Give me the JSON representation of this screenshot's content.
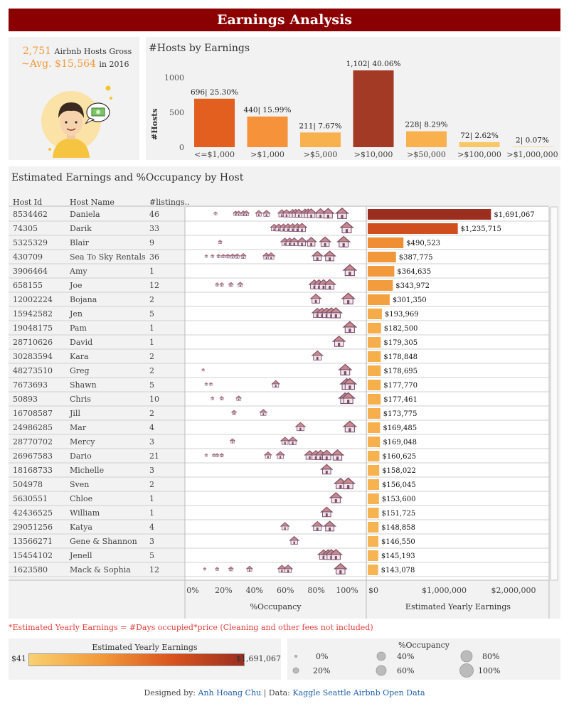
{
  "title": "Earnings Analysis",
  "summary": {
    "hosts": "2,751",
    "hosts_text": "Airbnb Hosts Gross",
    "avg": "~Avg. $15,564",
    "avg_text": "in 2016"
  },
  "hist_title": "#Hosts by Earnings",
  "hist_ylabel": "#Hosts",
  "main_title": "Estimated Earnings and %Occupancy by Host",
  "columns": [
    "Host Id",
    "Host Name",
    "#listings.."
  ],
  "note": "*Estimated Yearly Earnings = #Days occupied*price (Cleaning and other fees not included)",
  "legend_earnings": {
    "title": "Estimated Yearly Earnings",
    "min": "$41",
    "max": "$1,691,067"
  },
  "legend_occ": {
    "title": "%Occupancy",
    "items": [
      "0%",
      "20%",
      "40%",
      "60%",
      "80%",
      "100%"
    ]
  },
  "footer": {
    "prefix": "Designed by:",
    "author": "Anh Hoang Chu",
    "sep": "| Data:",
    "source": "Kaggle Seattle Airbnb Open Data"
  },
  "colors": {
    "header": "#8b0000",
    "low": "#f9c866",
    "high": "#9b2f1f"
  },
  "chart_data": [
    {
      "type": "bar",
      "title": "#Hosts by Earnings",
      "ylabel": "#Hosts",
      "ylim": [
        0,
        1150
      ],
      "yticks": [
        0,
        500,
        1000
      ],
      "categories": [
        "<=$1,000",
        ">$1,000",
        ">$5,000",
        ">$10,000",
        ">$50,000",
        ">$100,000",
        ">$1,000,000"
      ],
      "values": [
        696,
        440,
        211,
        1102,
        228,
        72,
        2
      ],
      "labels": [
        "696| 25.30%",
        "440| 15.99%",
        "211| 7.67%",
        "1,102| 40.06%",
        "228| 8.29%",
        "72| 2.62%",
        "2| 0.07%"
      ],
      "colors": [
        "#e25f1f",
        "#f6923a",
        "#f8b14d",
        "#a33a26",
        "#f8b14d",
        "#f9c866",
        "#f9c866"
      ]
    },
    {
      "type": "scatter",
      "title": "%Occupancy",
      "xlabel": "%Occupancy",
      "xlim": [
        0,
        1
      ],
      "xticks": [
        "0%",
        "20%",
        "40%",
        "60%",
        "80%",
        "100%"
      ],
      "series": [
        {
          "host": "Daniela",
          "x": [
            0.12,
            0.25,
            0.27,
            0.3,
            0.32,
            0.4,
            0.45,
            0.55,
            0.58,
            0.62,
            0.64,
            0.66,
            0.7,
            0.72,
            0.74,
            0.8,
            0.85,
            0.94
          ]
        },
        {
          "host": "Darik",
          "x": [
            0.5,
            0.53,
            0.56,
            0.59,
            0.62,
            0.65,
            0.68,
            0.97
          ]
        },
        {
          "host": "Blair",
          "x": [
            0.15,
            0.57,
            0.6,
            0.63,
            0.68,
            0.74,
            0.83,
            0.95
          ]
        },
        {
          "host": "Sea To Sky Rentals",
          "x": [
            0.06,
            0.1,
            0.14,
            0.17,
            0.2,
            0.23,
            0.26,
            0.3,
            0.45,
            0.48,
            0.78,
            0.86
          ]
        },
        {
          "host": "Amy",
          "x": [
            0.99
          ]
        },
        {
          "host": "Joe",
          "x": [
            0.13,
            0.16,
            0.22,
            0.28,
            0.76,
            0.79,
            0.82,
            0.86
          ]
        },
        {
          "host": "Bojana",
          "x": [
            0.77,
            0.98
          ]
        },
        {
          "host": "Jen",
          "x": [
            0.78,
            0.81,
            0.84,
            0.87,
            0.9
          ]
        },
        {
          "host": "Pam",
          "x": [
            0.99
          ]
        },
        {
          "host": "David",
          "x": [
            0.92
          ]
        },
        {
          "host": "Kara",
          "x": [
            0.78
          ]
        },
        {
          "host": "Greg",
          "x": [
            0.04,
            0.96
          ]
        },
        {
          "host": "Shawn",
          "x": [
            0.06,
            0.09,
            0.51,
            0.97,
            0.99
          ]
        },
        {
          "host": "Chris",
          "x": [
            0.1,
            0.16,
            0.27,
            0.96,
            0.98
          ]
        },
        {
          "host": "Jill",
          "x": [
            0.24,
            0.43
          ]
        },
        {
          "host": "Mar",
          "x": [
            0.67,
            0.99
          ]
        },
        {
          "host": "Mercy",
          "x": [
            0.23,
            0.57,
            0.62
          ]
        },
        {
          "host": "Dario",
          "x": [
            0.06,
            0.11,
            0.13,
            0.16,
            0.46,
            0.54,
            0.73,
            0.77,
            0.8,
            0.84,
            0.91
          ]
        },
        {
          "host": "Michelle",
          "x": [
            0.84
          ]
        },
        {
          "host": "Sven",
          "x": [
            0.93,
            0.98
          ]
        },
        {
          "host": "Chloe",
          "x": [
            0.9
          ]
        },
        {
          "host": "William",
          "x": [
            0.84
          ]
        },
        {
          "host": "Katya",
          "x": [
            0.57,
            0.78,
            0.86
          ]
        },
        {
          "host": "Gene & Shannon",
          "x": [
            0.63
          ]
        },
        {
          "host": "Jenell",
          "x": [
            0.82,
            0.85,
            0.87,
            0.9
          ]
        },
        {
          "host": "Mack & Sophia",
          "x": [
            0.05,
            0.13,
            0.22,
            0.34,
            0.55,
            0.59,
            0.93
          ]
        }
      ]
    },
    {
      "type": "bar",
      "orientation": "horizontal",
      "title": "Estimated Yearly Earnings",
      "xlabel": "Estimated Yearly Earnings",
      "xlim": [
        0,
        2300000
      ],
      "xticks": [
        "$0",
        "$1,000,000",
        "$2,000,000"
      ],
      "hosts": [
        {
          "id": "8534462",
          "name": "Daniela",
          "listings": "46",
          "earnings": 1691067,
          "label": "$1,691,067"
        },
        {
          "id": "74305",
          "name": "Darik",
          "listings": "33",
          "earnings": 1235715,
          "label": "$1,235,715"
        },
        {
          "id": "5325329",
          "name": "Blair",
          "listings": "9",
          "earnings": 490523,
          "label": "$490,523"
        },
        {
          "id": "430709",
          "name": "Sea To Sky Rentals",
          "listings": "36",
          "earnings": 387775,
          "label": "$387,775"
        },
        {
          "id": "3906464",
          "name": "Amy",
          "listings": "1",
          "earnings": 364635,
          "label": "$364,635"
        },
        {
          "id": "658155",
          "name": "Joe",
          "listings": "12",
          "earnings": 343972,
          "label": "$343,972"
        },
        {
          "id": "12002224",
          "name": "Bojana",
          "listings": "2",
          "earnings": 301350,
          "label": "$301,350"
        },
        {
          "id": "15942582",
          "name": "Jen",
          "listings": "5",
          "earnings": 193969,
          "label": "$193,969"
        },
        {
          "id": "19048175",
          "name": "Pam",
          "listings": "1",
          "earnings": 182500,
          "label": "$182,500"
        },
        {
          "id": "28710626",
          "name": "David",
          "listings": "1",
          "earnings": 179305,
          "label": "$179,305"
        },
        {
          "id": "30283594",
          "name": "Kara",
          "listings": "2",
          "earnings": 178848,
          "label": "$178,848"
        },
        {
          "id": "48273510",
          "name": "Greg",
          "listings": "2",
          "earnings": 178695,
          "label": "$178,695"
        },
        {
          "id": "7673693",
          "name": "Shawn",
          "listings": "5",
          "earnings": 177770,
          "label": "$177,770"
        },
        {
          "id": "50893",
          "name": "Chris",
          "listings": "10",
          "earnings": 177461,
          "label": "$177,461"
        },
        {
          "id": "16708587",
          "name": "Jill",
          "listings": "2",
          "earnings": 173775,
          "label": "$173,775"
        },
        {
          "id": "24986285",
          "name": "Mar",
          "listings": "4",
          "earnings": 169485,
          "label": "$169,485"
        },
        {
          "id": "28770702",
          "name": "Mercy",
          "listings": "3",
          "earnings": 169048,
          "label": "$169,048"
        },
        {
          "id": "26967583",
          "name": "Dario",
          "listings": "21",
          "earnings": 160625,
          "label": "$160,625"
        },
        {
          "id": "18168733",
          "name": "Michelle",
          "listings": "3",
          "earnings": 158022,
          "label": "$158,022"
        },
        {
          "id": "504978",
          "name": "Sven",
          "listings": "2",
          "earnings": 156045,
          "label": "$156,045"
        },
        {
          "id": "5630551",
          "name": "Chloe",
          "listings": "1",
          "earnings": 153600,
          "label": "$153,600"
        },
        {
          "id": "42436525",
          "name": "William",
          "listings": "1",
          "earnings": 151725,
          "label": "$151,725"
        },
        {
          "id": "29051256",
          "name": "Katya",
          "listings": "4",
          "earnings": 148858,
          "label": "$148,858"
        },
        {
          "id": "13566271",
          "name": "Gene & Shannon",
          "listings": "3",
          "earnings": 146550,
          "label": "$146,550"
        },
        {
          "id": "15454102",
          "name": "Jenell",
          "listings": "5",
          "earnings": 145193,
          "label": "$145,193"
        },
        {
          "id": "1623580",
          "name": "Mack & Sophia",
          "listings": "12",
          "earnings": 143078,
          "label": "$143,078"
        }
      ]
    }
  ]
}
